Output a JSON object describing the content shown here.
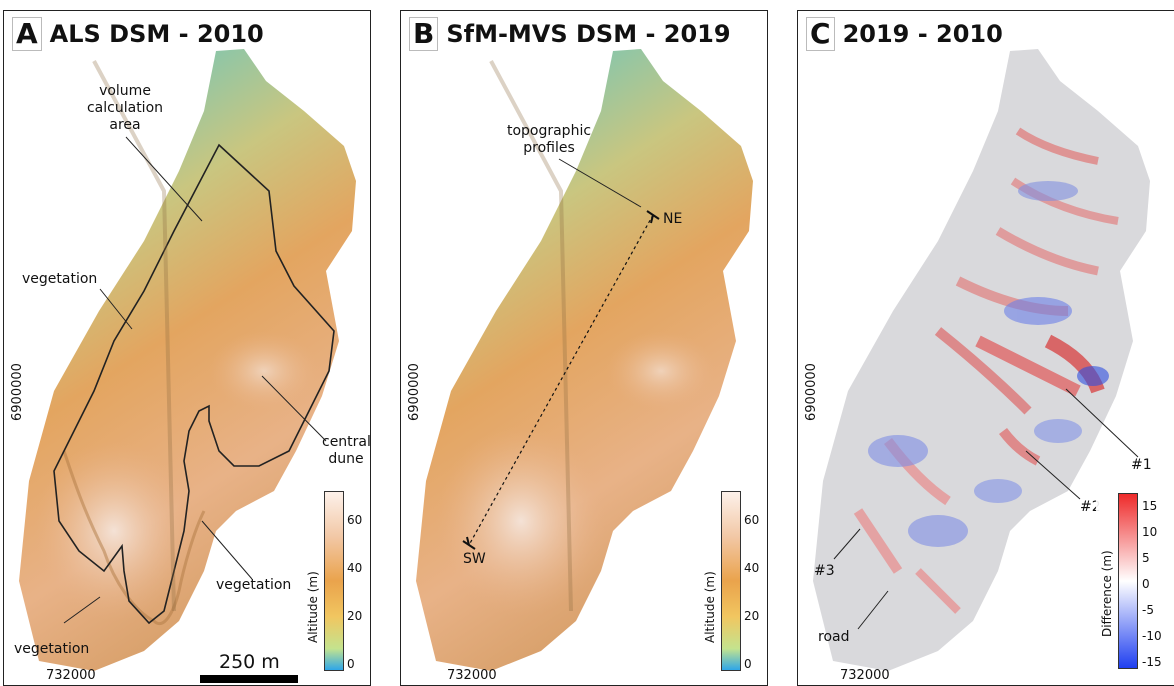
{
  "panels": {
    "a": {
      "letter": "A",
      "title": "ALS DSM - 2010"
    },
    "b": {
      "letter": "B",
      "title": "SfM-MVS DSM - 2019"
    },
    "c": {
      "letter": "C",
      "title": "2019 - 2010"
    }
  },
  "labels_a": {
    "volume_area": [
      "volume",
      "calculation",
      "area"
    ],
    "vegetation_1": "vegetation",
    "vegetation_2": "vegetation",
    "vegetation_3": "vegetation",
    "central_dune": [
      "central",
      "dune"
    ]
  },
  "labels_b": {
    "topo_profiles": [
      "topographic",
      "profiles"
    ],
    "ne": "NE",
    "sw": "SW"
  },
  "labels_c": {
    "area_1": "#1",
    "area_2": "#2",
    "area_3": "#3",
    "road": "road"
  },
  "coordinates": {
    "northing": "6900000",
    "easting": "732000"
  },
  "scale_bar": {
    "label": "250 m",
    "length_m": 250
  },
  "colorbars": {
    "altitude": {
      "title": "Altitude (m)",
      "ticks": [
        "0",
        "20",
        "40",
        "60"
      ],
      "min": 0,
      "max": 75
    },
    "difference": {
      "title": "Difference (m)",
      "ticks": [
        "15",
        "10",
        "5",
        "0",
        "-5",
        "-10",
        "-15"
      ],
      "min": -17,
      "max": 17
    }
  },
  "colors": {
    "altitude_low": "#3aa8e0",
    "altitude_mid": "#e8a055",
    "altitude_high": "#fbeee5",
    "difference_pos": "#e03030",
    "difference_neg": "#2040e0",
    "difference_zero": "#ffffff"
  }
}
